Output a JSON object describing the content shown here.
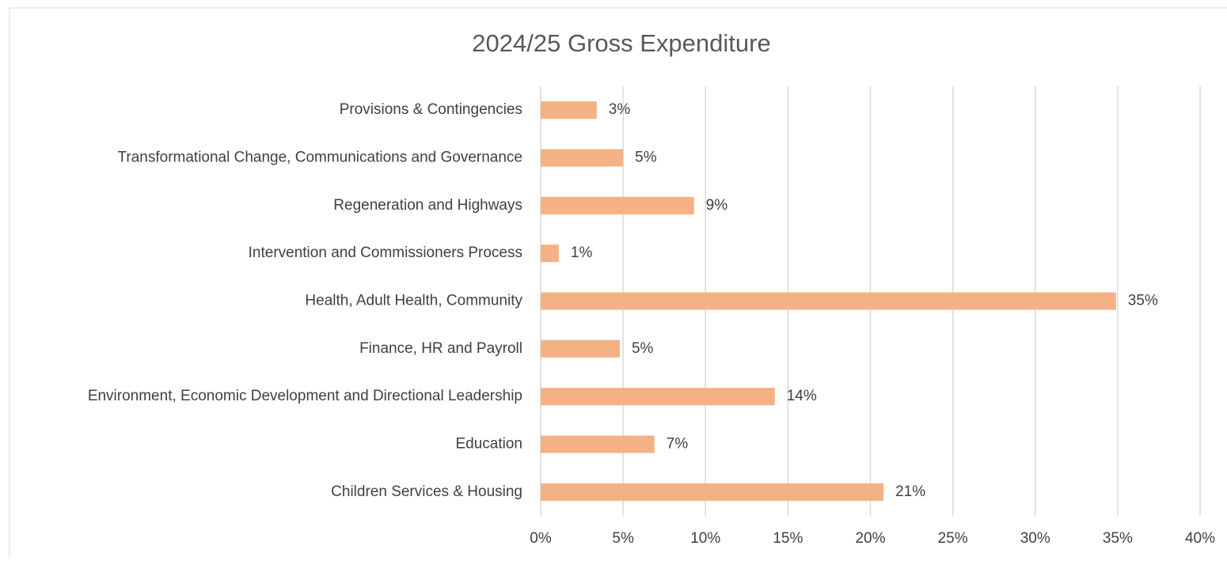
{
  "chart_data": {
    "type": "bar",
    "orientation": "horizontal",
    "title": "2024/25 Gross Expenditure",
    "categories": [
      "Provisions & Contingencies",
      "Transformational Change, Communications and Governance",
      "Regeneration and Highways",
      "Intervention and Commissioners Process",
      "Health, Adult Health, Community",
      "Finance, HR and Payroll",
      "Environment, Economic Development and Directional Leadership",
      "Education",
      "Children Services & Housing"
    ],
    "values": [
      3.4,
      5.0,
      9.3,
      1.1,
      34.9,
      4.8,
      14.2,
      6.9,
      20.8
    ],
    "value_labels": [
      "3%",
      "5%",
      "9%",
      "1%",
      "35%",
      "5%",
      "14%",
      "7%",
      "21%"
    ],
    "color": "#f4b183",
    "xlim": [
      0,
      40
    ],
    "xticks": [
      {
        "value": 0,
        "label": "0%"
      },
      {
        "value": 5,
        "label": "5%"
      },
      {
        "value": 10,
        "label": "10%"
      },
      {
        "value": 15,
        "label": "15%"
      },
      {
        "value": 20,
        "label": "20%"
      },
      {
        "value": 25,
        "label": "25%"
      },
      {
        "value": 30,
        "label": "30%"
      },
      {
        "value": 35,
        "label": "35%"
      },
      {
        "value": 40,
        "label": "40%"
      }
    ],
    "grid": true
  }
}
